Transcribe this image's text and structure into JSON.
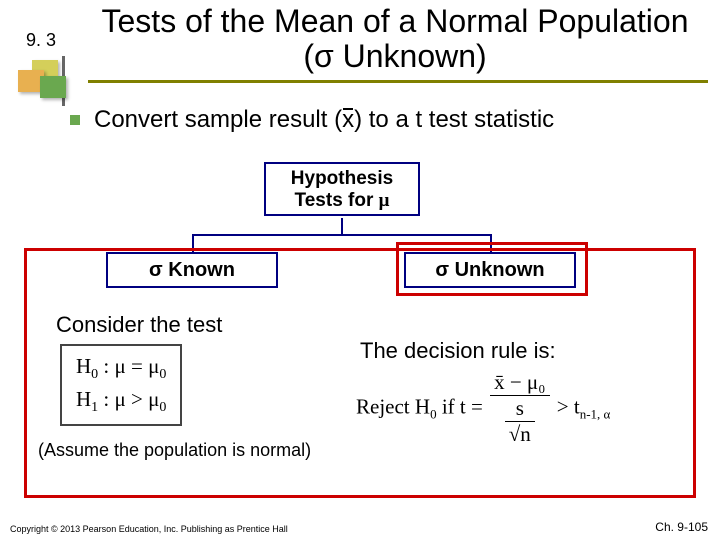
{
  "section_number": "9. 3",
  "title": "Tests of the Mean of a Normal Population (σ Unknown)",
  "bullet": {
    "pre": "Convert sample result (",
    "sym": "x",
    "post": ") to a  t  test statistic"
  },
  "tree": {
    "root_l1": "Hypothesis",
    "root_l2_pre": "Tests for ",
    "root_l2_sym": "μ",
    "left": "σ Known",
    "right": "σ Unknown"
  },
  "left_panel": {
    "consider": "Consider the test",
    "h0_label": "H",
    "h0_sub": "0",
    "h0_rest": " : μ = μ",
    "h0_sub2": "0",
    "h1_label": "H",
    "h1_sub": "1",
    "h1_rest": " : μ > μ",
    "h1_sub2": "0",
    "assume": "(Assume the population is normal)"
  },
  "right_panel": {
    "decision": "The decision rule is:",
    "reject_pre": "Reject H",
    "reject_sub": "0",
    "reject_if": " if  t = ",
    "num": "x̄ − μ₀",
    "den_outer_num": "s",
    "den_outer_den": "√n",
    "gt": " > t",
    "gt_sub": "n-1, α"
  },
  "footer": {
    "left": "Copyright © 2013 Pearson Education, Inc. Publishing as Prentice Hall",
    "right": "Ch. 9-105"
  },
  "colors": {
    "title_underline": "#808000",
    "bullet_square": "#6aa84f",
    "box_border": "#000080",
    "highlight_border": "#cc0000"
  }
}
